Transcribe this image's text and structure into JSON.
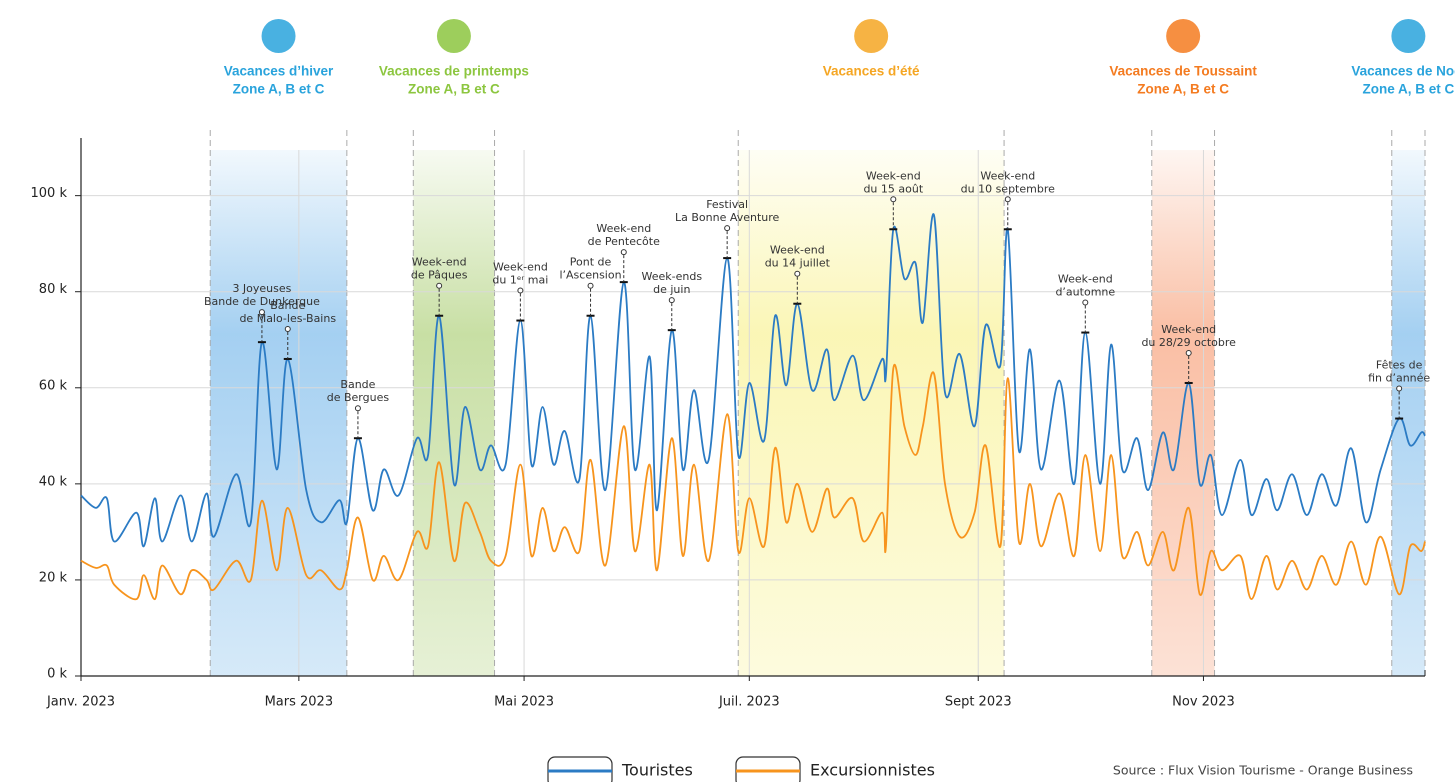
{
  "chart_data": {
    "type": "line",
    "xlim": [
      0,
      364
    ],
    "xticks": [
      {
        "value": 0,
        "label": "Janv. 2023"
      },
      {
        "value": 59,
        "label": "Mars 2023"
      },
      {
        "value": 120,
        "label": "Mai 2023"
      },
      {
        "value": 181,
        "label": "Juil. 2023"
      },
      {
        "value": 243,
        "label": "Sept 2023"
      },
      {
        "value": 304,
        "label": "Nov 2023"
      }
    ],
    "ylim": [
      0,
      112000
    ],
    "yticks": [
      {
        "value": 0,
        "label": "0 k"
      },
      {
        "value": 20000,
        "label": "20 k"
      },
      {
        "value": 40000,
        "label": "40 k"
      },
      {
        "value": 60000,
        "label": "60 k"
      },
      {
        "value": 80000,
        "label": "80 k"
      },
      {
        "value": 100000,
        "label": "100 k"
      }
    ],
    "grid": true,
    "legend": "bottom",
    "x": [
      0,
      4,
      7,
      9,
      15,
      17,
      20,
      22,
      27,
      30,
      34,
      36,
      42,
      46,
      49,
      53,
      56,
      61,
      65,
      70,
      72,
      75,
      79,
      82,
      86,
      91,
      94,
      97,
      101,
      104,
      108,
      111,
      115,
      119,
      122,
      125,
      128,
      131,
      135,
      138,
      142,
      147,
      150,
      154,
      156,
      160,
      163,
      166,
      170,
      175,
      178,
      181,
      185,
      188,
      191,
      194,
      198,
      202,
      204,
      209,
      212,
      217,
      218,
      220,
      223,
      226,
      228,
      231,
      234,
      238,
      242,
      245,
      249,
      251,
      254,
      257,
      260,
      265,
      269,
      272,
      276,
      279,
      282,
      286,
      289,
      293,
      296,
      300,
      303,
      306,
      309,
      314,
      317,
      321,
      324,
      328,
      332,
      336,
      340,
      344,
      348,
      352,
      357,
      360,
      363,
      364
    ],
    "series": [
      {
        "name": "Touristes",
        "color": "#2b7bc4",
        "values": [
          37600,
          35000,
          37000,
          28000,
          34000,
          27000,
          37000,
          28000,
          37600,
          28000,
          38000,
          29000,
          42000,
          32000,
          69500,
          43000,
          66000,
          38700,
          32000,
          36600,
          32000,
          49500,
          34500,
          43000,
          37600,
          49500,
          46000,
          75000,
          40000,
          56000,
          43000,
          48000,
          44000,
          74000,
          44000,
          56000,
          44000,
          51000,
          41000,
          75000,
          38700,
          82000,
          43000,
          66500,
          34500,
          72000,
          43000,
          59500,
          45000,
          87000,
          46000,
          61000,
          49000,
          75000,
          60500,
          77500,
          59500,
          68000,
          57400,
          66700,
          57400,
          66000,
          62600,
          93000,
          82700,
          86000,
          73600,
          96000,
          59000,
          67000,
          52000,
          73000,
          64700,
          93000,
          47000,
          68000,
          43000,
          61500,
          40000,
          71500,
          40000,
          69000,
          43000,
          49500,
          38700,
          50700,
          43000,
          61000,
          40000,
          46000,
          33500,
          45000,
          33500,
          41000,
          34500,
          42000,
          33500,
          42000,
          35500,
          47400,
          32000,
          43000,
          53600,
          48000,
          50700,
          50000
        ]
      },
      {
        "name": "Excursionnistes",
        "color": "#f7941d",
        "values": [
          24000,
          22500,
          23000,
          19000,
          16000,
          21000,
          16000,
          23000,
          17000,
          22000,
          20000,
          18000,
          24000,
          20000,
          36500,
          22000,
          35000,
          21000,
          22000,
          18000,
          22000,
          33000,
          20000,
          25000,
          20000,
          30000,
          27000,
          44500,
          24000,
          36000,
          30000,
          24000,
          25000,
          44000,
          25000,
          35000,
          26000,
          31000,
          26000,
          45000,
          23000,
          52000,
          26000,
          44000,
          22000,
          49500,
          25000,
          44000,
          24000,
          54500,
          26000,
          37000,
          27000,
          47500,
          32000,
          40000,
          30000,
          39000,
          33000,
          37000,
          28000,
          34000,
          27000,
          64000,
          52000,
          46000,
          52000,
          63000,
          40000,
          29000,
          34000,
          48000,
          27000,
          62000,
          28000,
          40000,
          27000,
          38000,
          25000,
          46000,
          26000,
          46000,
          25000,
          30000,
          23000,
          30000,
          22000,
          35000,
          17000,
          26000,
          22000,
          25000,
          16000,
          25000,
          18000,
          24000,
          18000,
          25000,
          19000,
          28000,
          19000,
          29000,
          17000,
          27000,
          26000,
          28000
        ]
      }
    ],
    "periods": [
      {
        "name": "Vacances d’hiver",
        "zone": "Zone A, B et C",
        "start": 35,
        "end": 72,
        "color": "#5aa9e6",
        "label_color": "#29a3dc"
      },
      {
        "name": "Vacances de printemps",
        "zone": "Zone A, B et C",
        "start": 90,
        "end": 112,
        "color": "#9bc55a",
        "label_color": "#8cc63f"
      },
      {
        "name": "Vacances d’été",
        "start": 178,
        "end": 250,
        "color": "#f7ef7a",
        "label_color": "#f5a623"
      },
      {
        "name": "Vacances de Toussaint",
        "zone": "Zone A, B et C",
        "start": 290,
        "end": 307,
        "color": "#f58a5a",
        "label_color": "#f47b20"
      },
      {
        "name": "Vacances de Noël",
        "zone": "Zone A, B et C",
        "start": 355,
        "end": 364,
        "color": "#5aa9e6",
        "label_color": "#29a3dc"
      }
    ],
    "annotations": [
      {
        "x": 49,
        "text": [
          "3 Joyeuses",
          "Bande de Dunkerque"
        ]
      },
      {
        "x": 56,
        "text": [
          "Bande",
          "de Malo-les-Bains"
        ]
      },
      {
        "x": 75,
        "text": [
          "Bande",
          "de Bergues"
        ]
      },
      {
        "x": 97,
        "text": [
          "Week-end",
          "de Pâques"
        ]
      },
      {
        "x": 119,
        "text": [
          "Week-end",
          "du 1ᵉʳ mai"
        ]
      },
      {
        "x": 138,
        "text": [
          "Pont de",
          "l’Ascension"
        ]
      },
      {
        "x": 147,
        "text": [
          "Week-end",
          "de Pentecôte"
        ]
      },
      {
        "x": 160,
        "text": [
          "Week-ends",
          "de juin"
        ]
      },
      {
        "x": 175,
        "text": [
          "Festival",
          "La Bonne Aventure"
        ]
      },
      {
        "x": 194,
        "text": [
          "Week-end",
          "du 14 juillet"
        ]
      },
      {
        "x": 220,
        "text": [
          "Week-end",
          "du 15 août"
        ]
      },
      {
        "x": 251,
        "text": [
          "Week-end",
          "du 10 septembre"
        ]
      },
      {
        "x": 272,
        "text": [
          "Week-end",
          "d’automne"
        ]
      },
      {
        "x": 300,
        "text": [
          "Week-end",
          "du 28/29 octobre"
        ]
      },
      {
        "x": 357,
        "text": [
          "Fêtes de",
          "fin d’année"
        ]
      }
    ],
    "source": "Source : Flux Vision Tourisme - Orange Business"
  }
}
